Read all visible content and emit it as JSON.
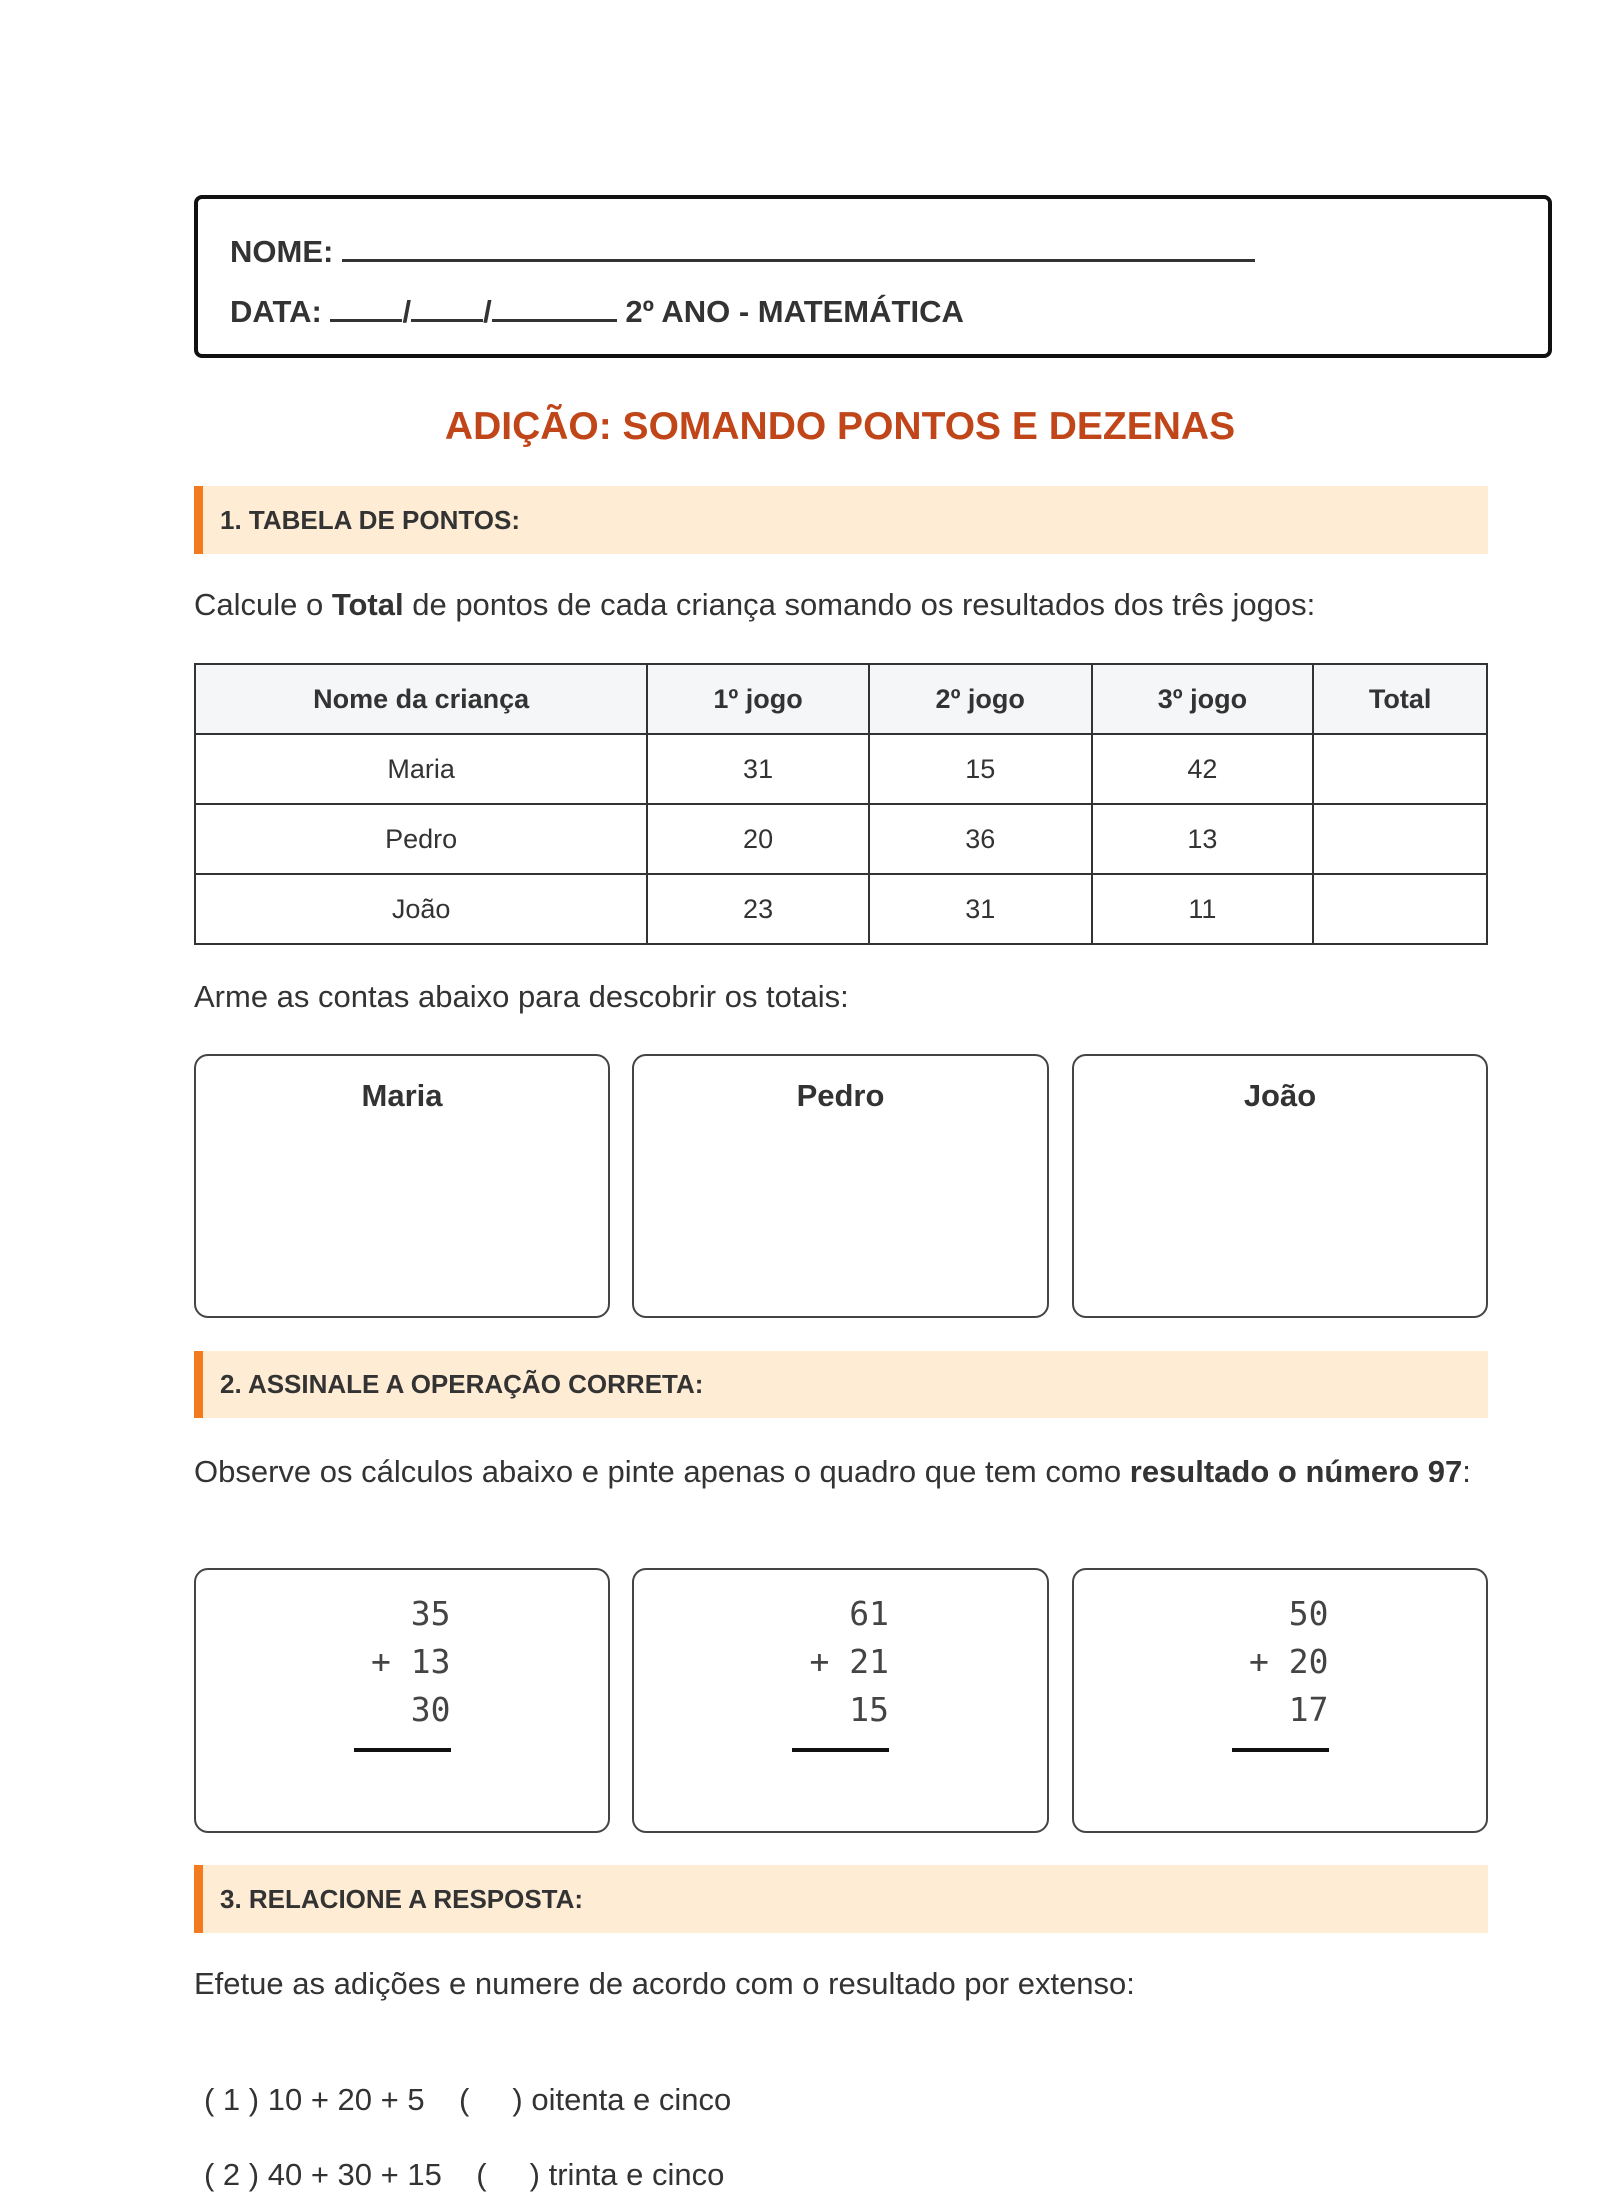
{
  "header": {
    "name_label": "NOME:",
    "date_label": "DATA:",
    "date_sep1": "/",
    "date_sep2": "/",
    "grade_subject": "2º ANO - MATEMÁTICA"
  },
  "title": "ADIÇÃO: SOMANDO PONTOS E DEZENAS",
  "colors": {
    "title": "#c0461a",
    "section_bg": "#feecd4",
    "section_accent": "#f47a20"
  },
  "section1": {
    "heading": "1. TABELA DE PONTOS:",
    "intro_pre": "Calcule o ",
    "intro_bold": "Total",
    "intro_post": " de pontos de cada criança somando os resultados dos três jogos:",
    "table": {
      "headers": [
        "Nome da criança",
        "1º jogo",
        "2º jogo",
        "3º jogo",
        "Total"
      ],
      "rows": [
        [
          "Maria",
          "31",
          "15",
          "42",
          ""
        ],
        [
          "Pedro",
          "20",
          "36",
          "13",
          ""
        ],
        [
          "João",
          "23",
          "31",
          "11",
          ""
        ]
      ]
    },
    "instruction": "Arme as contas abaixo para descobrir os totais:",
    "cards": [
      "Maria",
      "Pedro",
      "João"
    ]
  },
  "section2": {
    "heading": "2. ASSINALE A OPERAÇÃO CORRETA:",
    "intro_pre": "Observe os cálculos abaixo e pinte apenas o quadro que tem como ",
    "intro_bold": "resultado o número 97",
    "intro_post": ":",
    "operations": [
      {
        "a": "35",
        "b": "13",
        "c": "30",
        "op": "+"
      },
      {
        "a": "61",
        "b": "21",
        "c": "15",
        "op": "+"
      },
      {
        "a": "50",
        "b": "20",
        "c": "17",
        "op": "+"
      }
    ]
  },
  "section3": {
    "heading": "3. RELACIONE A RESPOSTA:",
    "intro": "Efetue as adições e numere de acordo com o resultado por extenso:",
    "items": [
      {
        "left": "( 1 ) 10 + 20 + 5",
        "right": "(     ) oitenta e cinco"
      },
      {
        "left": "( 2 ) 40 + 30 + 15",
        "right": "(     ) trinta e cinco"
      }
    ]
  }
}
